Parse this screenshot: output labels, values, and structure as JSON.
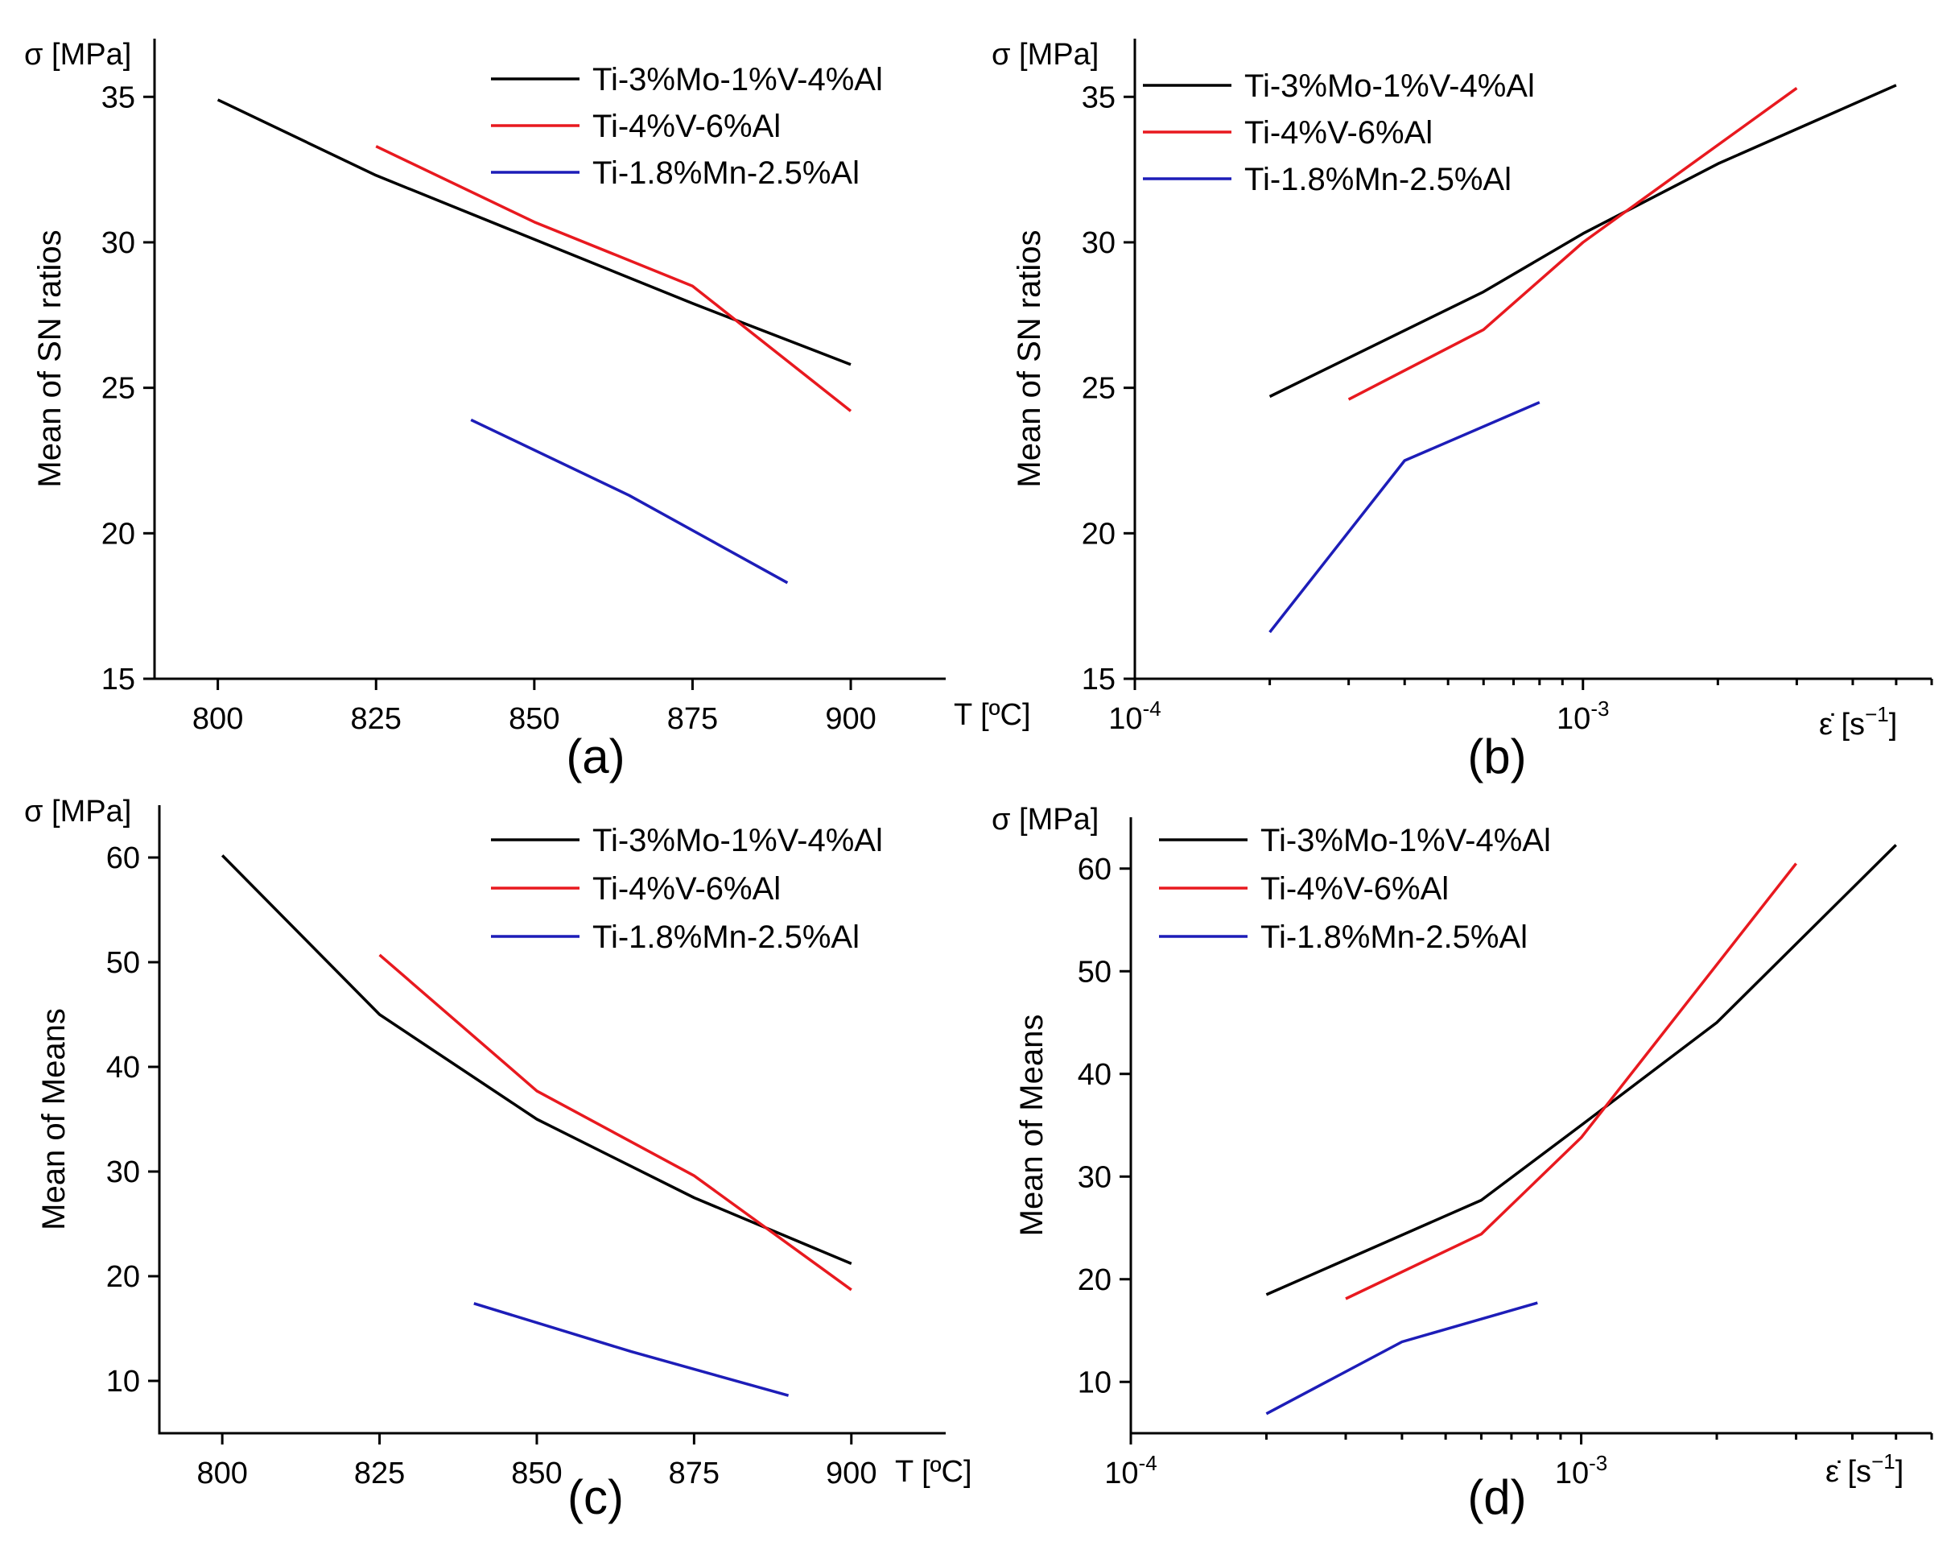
{
  "figure": {
    "colors": {
      "Ti-3%Mo-1%V-4%Al": "#000000",
      "Ti-4%V-6%Al": "#e8191f",
      "Ti-1.8%Mn-2.5%Al": "#1d1db8"
    }
  },
  "chart_data": [
    {
      "panel": "(a)",
      "type": "line",
      "xscale": "linear",
      "xlim": [
        790,
        915
      ],
      "ylim": [
        15,
        37
      ],
      "xticks": [
        800,
        825,
        850,
        875,
        900
      ],
      "xtick_labels": [
        "800",
        "825",
        "850",
        "875",
        "900"
      ],
      "yticks": [
        15,
        20,
        25,
        30,
        35
      ],
      "ytick_labels": [
        "15",
        "20",
        "25",
        "30",
        "35"
      ],
      "ylabel": "Mean of SN ratios",
      "y_units": "σ [MPa]",
      "x_units": "T [ºC]",
      "legend_position": "top-right",
      "series": [
        {
          "name": "Ti-3%Mo-1%V-4%Al",
          "x": [
            800,
            825,
            850,
            875,
            900
          ],
          "y": [
            34.9,
            32.3,
            30.1,
            27.9,
            25.8
          ]
        },
        {
          "name": "Ti-4%V-6%Al",
          "x": [
            825,
            850,
            875,
            900
          ],
          "y": [
            33.3,
            30.7,
            28.5,
            24.2
          ]
        },
        {
          "name": "Ti-1.8%Mn-2.5%Al",
          "x": [
            840,
            865,
            890
          ],
          "y": [
            23.9,
            21.3,
            18.3
          ]
        }
      ]
    },
    {
      "panel": "(b)",
      "type": "line",
      "xscale": "log",
      "xlim": [
        0.0001,
        0.006
      ],
      "ylim": [
        15,
        37
      ],
      "xticks": [
        0.0001,
        0.001
      ],
      "xtick_labels": [
        [
          "10",
          "-4"
        ],
        [
          "10",
          "-3"
        ]
      ],
      "yticks": [
        15,
        20,
        25,
        30,
        35
      ],
      "ytick_labels": [
        "15",
        "20",
        "25",
        "30",
        "35"
      ],
      "ylabel": "Mean of SN ratios",
      "y_units": "σ [MPa]",
      "x_units": [
        "ε̇ [s",
        "−1",
        "]"
      ],
      "legend_position": "top-left",
      "series": [
        {
          "name": "Ti-3%Mo-1%V-4%Al",
          "x": [
            0.0002,
            0.0006,
            0.001,
            0.002,
            0.005
          ],
          "y": [
            24.7,
            28.3,
            30.3,
            32.7,
            35.4
          ]
        },
        {
          "name": "Ti-4%V-6%Al",
          "x": [
            0.0003,
            0.0006,
            0.001,
            0.003
          ],
          "y": [
            24.6,
            27.0,
            30.0,
            35.3
          ]
        },
        {
          "name": "Ti-1.8%Mn-2.5%Al",
          "x": [
            0.0002,
            0.0004,
            0.0008
          ],
          "y": [
            16.6,
            22.5,
            24.5
          ]
        }
      ]
    },
    {
      "panel": "(c)",
      "type": "line",
      "xscale": "linear",
      "xlim": [
        790,
        915
      ],
      "ylim": [
        5,
        65
      ],
      "xticks": [
        800,
        825,
        850,
        875,
        900
      ],
      "xtick_labels": [
        "800",
        "825",
        "850",
        "875",
        "900"
      ],
      "yticks": [
        10,
        20,
        30,
        40,
        50,
        60
      ],
      "ytick_labels": [
        "10",
        "20",
        "30",
        "40",
        "50",
        "60"
      ],
      "ylabel": "Mean of Means",
      "y_units": "σ [MPa]",
      "x_units": "T [ºC]",
      "legend_position": "top-right",
      "series": [
        {
          "name": "Ti-3%Mo-1%V-4%Al",
          "x": [
            800,
            825,
            850,
            875,
            900
          ],
          "y": [
            60.2,
            45.0,
            35.0,
            27.5,
            21.2
          ]
        },
        {
          "name": "Ti-4%V-6%Al",
          "x": [
            825,
            850,
            875,
            900
          ],
          "y": [
            50.7,
            37.7,
            29.6,
            18.7
          ]
        },
        {
          "name": "Ti-1.8%Mn-2.5%Al",
          "x": [
            840,
            865,
            890
          ],
          "y": [
            17.4,
            12.8,
            8.6
          ]
        }
      ]
    },
    {
      "panel": "(d)",
      "type": "line",
      "xscale": "log",
      "xlim": [
        0.0001,
        0.006
      ],
      "ylim": [
        5,
        65
      ],
      "xticks": [
        0.0001,
        0.001
      ],
      "xtick_labels": [
        [
          "10",
          "-4"
        ],
        [
          "10",
          "-3"
        ]
      ],
      "yticks": [
        10,
        20,
        30,
        40,
        50,
        60
      ],
      "ytick_labels": [
        "10",
        "20",
        "30",
        "40",
        "50",
        "60"
      ],
      "ylabel": "Mean of Means",
      "y_units": "σ [MPa]",
      "x_units": [
        "ε̇ [s",
        "−1",
        "]"
      ],
      "legend_position": "top-left",
      "series": [
        {
          "name": "Ti-3%Mo-1%V-4%Al",
          "x": [
            0.0002,
            0.0006,
            0.001,
            0.002,
            0.005
          ],
          "y": [
            18.5,
            27.7,
            35.0,
            45.0,
            62.3
          ]
        },
        {
          "name": "Ti-4%V-6%Al",
          "x": [
            0.0003,
            0.0006,
            0.001,
            0.003
          ],
          "y": [
            18.1,
            24.4,
            33.8,
            60.5
          ]
        },
        {
          "name": "Ti-1.8%Mn-2.5%Al",
          "x": [
            0.0002,
            0.0004,
            0.0008
          ],
          "y": [
            6.9,
            13.9,
            17.7
          ]
        }
      ]
    }
  ]
}
